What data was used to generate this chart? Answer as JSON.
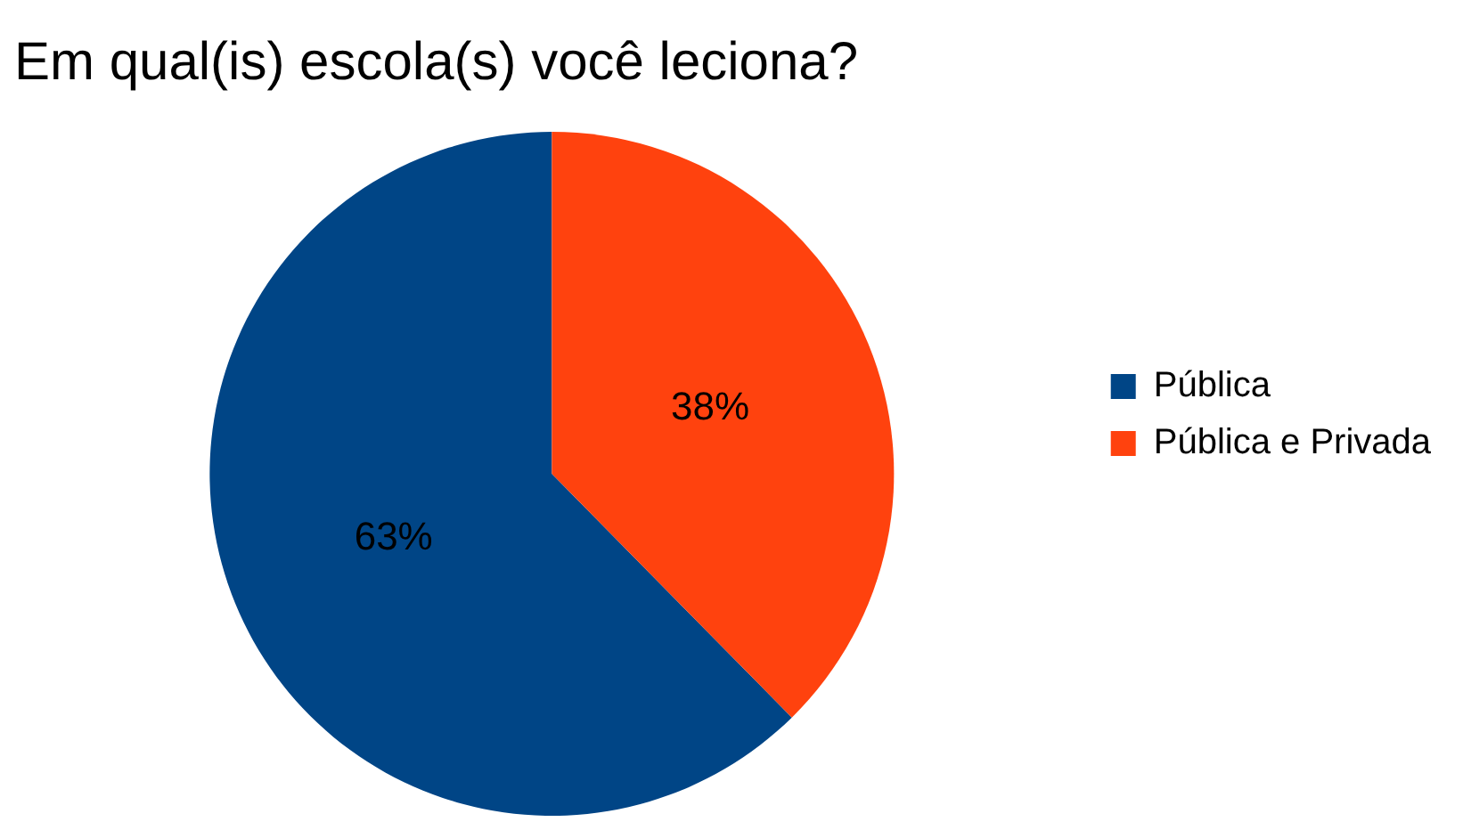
{
  "chart_data": {
    "type": "pie",
    "title": "Em qual(is) escola(s) você leciona?",
    "categories": [
      "Pública",
      "Pública e Privada"
    ],
    "values": [
      63,
      38
    ],
    "colors": [
      "#004586",
      "#ff420e"
    ],
    "value_labels": [
      "63%",
      "38%"
    ],
    "legend": "right"
  }
}
